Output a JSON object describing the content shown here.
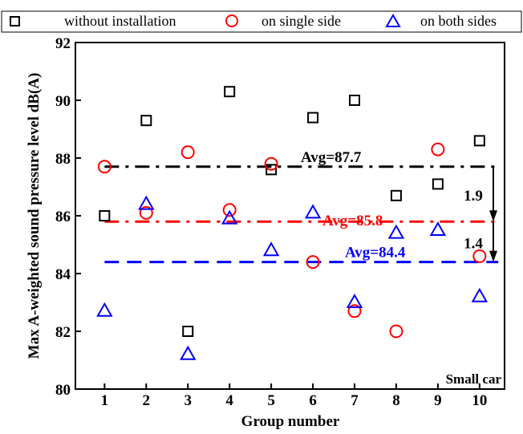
{
  "legend": {
    "items": [
      {
        "label": "without installation",
        "marker": "square",
        "color": "#000000"
      },
      {
        "label": "on single side",
        "marker": "circle",
        "color": "#ff0000"
      },
      {
        "label": "on both sides",
        "marker": "triangle",
        "color": "#0000ff"
      }
    ]
  },
  "chart_data": {
    "type": "scatter",
    "xlabel": "Group number",
    "ylabel": "Max A-weighted sound pressure level dB(A)",
    "xlim": [
      0.3,
      10.6
    ],
    "ylim": [
      80,
      92
    ],
    "xticks": [
      1,
      2,
      3,
      4,
      5,
      6,
      7,
      8,
      9,
      10
    ],
    "yticks": [
      80,
      82,
      84,
      86,
      88,
      90,
      92
    ],
    "x": [
      1,
      2,
      3,
      4,
      5,
      6,
      7,
      8,
      9,
      10
    ],
    "series": [
      {
        "name": "without installation",
        "marker": "square",
        "color": "#000000",
        "values": [
          86.0,
          89.3,
          82.0,
          90.3,
          87.6,
          89.4,
          90.0,
          86.7,
          87.1,
          88.6
        ]
      },
      {
        "name": "on single side",
        "marker": "circle",
        "color": "#ff0000",
        "values": [
          87.7,
          86.1,
          88.2,
          86.2,
          87.8,
          84.4,
          82.7,
          82.0,
          88.3,
          84.6
        ]
      },
      {
        "name": "on both sides",
        "marker": "triangle",
        "color": "#0000ff",
        "values": [
          82.7,
          86.4,
          81.2,
          85.9,
          84.8,
          86.1,
          83.0,
          85.4,
          85.5,
          83.2
        ]
      }
    ],
    "averages": [
      {
        "label": "Avg=87.7",
        "value": 87.7,
        "color": "#000000",
        "dash": "dashdot"
      },
      {
        "label": "Avg=85.8",
        "value": 85.8,
        "color": "#ff0000",
        "dash": "dashdot"
      },
      {
        "label": "Avg=84.4",
        "value": 84.4,
        "color": "#0000ff",
        "dash": "dashed"
      }
    ],
    "differences": [
      {
        "label": "1.9",
        "from": 87.7,
        "to": 85.8
      },
      {
        "label": "1.4",
        "from": 85.8,
        "to": 84.4
      }
    ],
    "annotation": "Small car",
    "grid": false
  }
}
